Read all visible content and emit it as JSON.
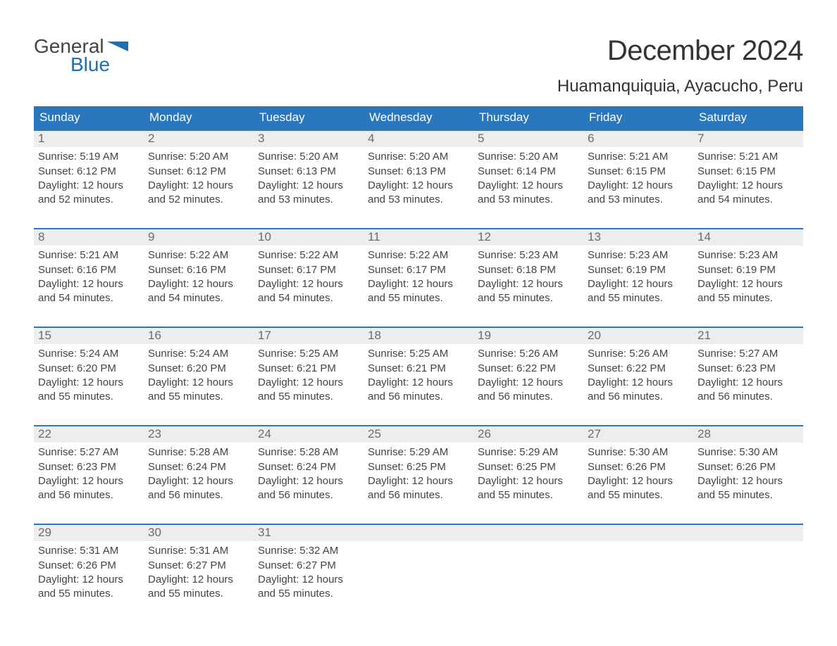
{
  "logo": {
    "text_general": "General",
    "text_blue": "Blue"
  },
  "title": "December 2024",
  "location": "Huamanquiquia, Ayacucho, Peru",
  "colors": {
    "header_bg": "#2a77bd",
    "header_text": "#ffffff",
    "week_border": "#2a77bd",
    "daynum_bg": "#eceded",
    "daynum_text": "#6b6b6b",
    "body_text": "#444444",
    "logo_blue": "#1f6fb2",
    "background": "#ffffff"
  },
  "typography": {
    "title_fontsize": 40,
    "location_fontsize": 24,
    "weekday_fontsize": 17,
    "daynum_fontsize": 17,
    "body_fontsize": 15,
    "font_family": "Arial"
  },
  "weekdays": [
    "Sunday",
    "Monday",
    "Tuesday",
    "Wednesday",
    "Thursday",
    "Friday",
    "Saturday"
  ],
  "weeks": [
    [
      {
        "num": "1",
        "sunrise": "Sunrise: 5:19 AM",
        "sunset": "Sunset: 6:12 PM",
        "d1": "Daylight: 12 hours",
        "d2": "and 52 minutes."
      },
      {
        "num": "2",
        "sunrise": "Sunrise: 5:20 AM",
        "sunset": "Sunset: 6:12 PM",
        "d1": "Daylight: 12 hours",
        "d2": "and 52 minutes."
      },
      {
        "num": "3",
        "sunrise": "Sunrise: 5:20 AM",
        "sunset": "Sunset: 6:13 PM",
        "d1": "Daylight: 12 hours",
        "d2": "and 53 minutes."
      },
      {
        "num": "4",
        "sunrise": "Sunrise: 5:20 AM",
        "sunset": "Sunset: 6:13 PM",
        "d1": "Daylight: 12 hours",
        "d2": "and 53 minutes."
      },
      {
        "num": "5",
        "sunrise": "Sunrise: 5:20 AM",
        "sunset": "Sunset: 6:14 PM",
        "d1": "Daylight: 12 hours",
        "d2": "and 53 minutes."
      },
      {
        "num": "6",
        "sunrise": "Sunrise: 5:21 AM",
        "sunset": "Sunset: 6:15 PM",
        "d1": "Daylight: 12 hours",
        "d2": "and 53 minutes."
      },
      {
        "num": "7",
        "sunrise": "Sunrise: 5:21 AM",
        "sunset": "Sunset: 6:15 PM",
        "d1": "Daylight: 12 hours",
        "d2": "and 54 minutes."
      }
    ],
    [
      {
        "num": "8",
        "sunrise": "Sunrise: 5:21 AM",
        "sunset": "Sunset: 6:16 PM",
        "d1": "Daylight: 12 hours",
        "d2": "and 54 minutes."
      },
      {
        "num": "9",
        "sunrise": "Sunrise: 5:22 AM",
        "sunset": "Sunset: 6:16 PM",
        "d1": "Daylight: 12 hours",
        "d2": "and 54 minutes."
      },
      {
        "num": "10",
        "sunrise": "Sunrise: 5:22 AM",
        "sunset": "Sunset: 6:17 PM",
        "d1": "Daylight: 12 hours",
        "d2": "and 54 minutes."
      },
      {
        "num": "11",
        "sunrise": "Sunrise: 5:22 AM",
        "sunset": "Sunset: 6:17 PM",
        "d1": "Daylight: 12 hours",
        "d2": "and 55 minutes."
      },
      {
        "num": "12",
        "sunrise": "Sunrise: 5:23 AM",
        "sunset": "Sunset: 6:18 PM",
        "d1": "Daylight: 12 hours",
        "d2": "and 55 minutes."
      },
      {
        "num": "13",
        "sunrise": "Sunrise: 5:23 AM",
        "sunset": "Sunset: 6:19 PM",
        "d1": "Daylight: 12 hours",
        "d2": "and 55 minutes."
      },
      {
        "num": "14",
        "sunrise": "Sunrise: 5:23 AM",
        "sunset": "Sunset: 6:19 PM",
        "d1": "Daylight: 12 hours",
        "d2": "and 55 minutes."
      }
    ],
    [
      {
        "num": "15",
        "sunrise": "Sunrise: 5:24 AM",
        "sunset": "Sunset: 6:20 PM",
        "d1": "Daylight: 12 hours",
        "d2": "and 55 minutes."
      },
      {
        "num": "16",
        "sunrise": "Sunrise: 5:24 AM",
        "sunset": "Sunset: 6:20 PM",
        "d1": "Daylight: 12 hours",
        "d2": "and 55 minutes."
      },
      {
        "num": "17",
        "sunrise": "Sunrise: 5:25 AM",
        "sunset": "Sunset: 6:21 PM",
        "d1": "Daylight: 12 hours",
        "d2": "and 55 minutes."
      },
      {
        "num": "18",
        "sunrise": "Sunrise: 5:25 AM",
        "sunset": "Sunset: 6:21 PM",
        "d1": "Daylight: 12 hours",
        "d2": "and 56 minutes."
      },
      {
        "num": "19",
        "sunrise": "Sunrise: 5:26 AM",
        "sunset": "Sunset: 6:22 PM",
        "d1": "Daylight: 12 hours",
        "d2": "and 56 minutes."
      },
      {
        "num": "20",
        "sunrise": "Sunrise: 5:26 AM",
        "sunset": "Sunset: 6:22 PM",
        "d1": "Daylight: 12 hours",
        "d2": "and 56 minutes."
      },
      {
        "num": "21",
        "sunrise": "Sunrise: 5:27 AM",
        "sunset": "Sunset: 6:23 PM",
        "d1": "Daylight: 12 hours",
        "d2": "and 56 minutes."
      }
    ],
    [
      {
        "num": "22",
        "sunrise": "Sunrise: 5:27 AM",
        "sunset": "Sunset: 6:23 PM",
        "d1": "Daylight: 12 hours",
        "d2": "and 56 minutes."
      },
      {
        "num": "23",
        "sunrise": "Sunrise: 5:28 AM",
        "sunset": "Sunset: 6:24 PM",
        "d1": "Daylight: 12 hours",
        "d2": "and 56 minutes."
      },
      {
        "num": "24",
        "sunrise": "Sunrise: 5:28 AM",
        "sunset": "Sunset: 6:24 PM",
        "d1": "Daylight: 12 hours",
        "d2": "and 56 minutes."
      },
      {
        "num": "25",
        "sunrise": "Sunrise: 5:29 AM",
        "sunset": "Sunset: 6:25 PM",
        "d1": "Daylight: 12 hours",
        "d2": "and 56 minutes."
      },
      {
        "num": "26",
        "sunrise": "Sunrise: 5:29 AM",
        "sunset": "Sunset: 6:25 PM",
        "d1": "Daylight: 12 hours",
        "d2": "and 55 minutes."
      },
      {
        "num": "27",
        "sunrise": "Sunrise: 5:30 AM",
        "sunset": "Sunset: 6:26 PM",
        "d1": "Daylight: 12 hours",
        "d2": "and 55 minutes."
      },
      {
        "num": "28",
        "sunrise": "Sunrise: 5:30 AM",
        "sunset": "Sunset: 6:26 PM",
        "d1": "Daylight: 12 hours",
        "d2": "and 55 minutes."
      }
    ],
    [
      {
        "num": "29",
        "sunrise": "Sunrise: 5:31 AM",
        "sunset": "Sunset: 6:26 PM",
        "d1": "Daylight: 12 hours",
        "d2": "and 55 minutes."
      },
      {
        "num": "30",
        "sunrise": "Sunrise: 5:31 AM",
        "sunset": "Sunset: 6:27 PM",
        "d1": "Daylight: 12 hours",
        "d2": "and 55 minutes."
      },
      {
        "num": "31",
        "sunrise": "Sunrise: 5:32 AM",
        "sunset": "Sunset: 6:27 PM",
        "d1": "Daylight: 12 hours",
        "d2": "and 55 minutes."
      },
      null,
      null,
      null,
      null
    ]
  ]
}
